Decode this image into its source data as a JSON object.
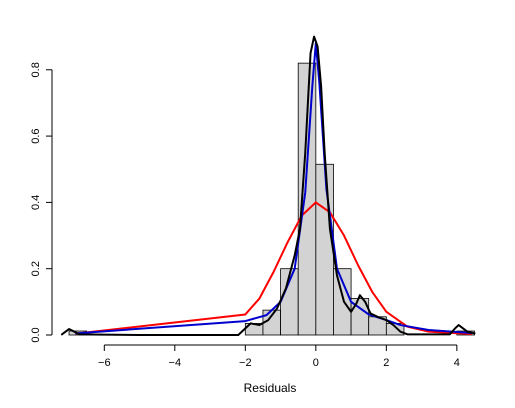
{
  "chart_data": {
    "type": "histogram",
    "title": "",
    "xlabel": "Residuals",
    "ylabel": "",
    "xlim": [
      -7.2,
      4.6
    ],
    "ylim": [
      0,
      0.92
    ],
    "x_ticks": [
      -6,
      -4,
      -2,
      0,
      2,
      4
    ],
    "y_ticks": [
      0.0,
      0.2,
      0.4,
      0.6,
      0.8
    ],
    "x_tick_labels": [
      "−6",
      "−4",
      "−2",
      "0",
      "2",
      "4"
    ],
    "y_tick_labels": [
      "0.0",
      "0.2",
      "0.4",
      "0.6",
      "0.8"
    ],
    "histogram": {
      "fill": "#d3d3d3",
      "bins": [
        {
          "x0": -7.0,
          "x1": -6.5,
          "y": 0.012
        },
        {
          "x0": -2.0,
          "x1": -1.5,
          "y": 0.035
        },
        {
          "x0": -1.5,
          "x1": -1.0,
          "y": 0.075
        },
        {
          "x0": -1.0,
          "x1": -0.5,
          "y": 0.2
        },
        {
          "x0": -0.5,
          "x1": 0.0,
          "y": 0.82
        },
        {
          "x0": 0.0,
          "x1": 0.5,
          "y": 0.515
        },
        {
          "x0": 0.5,
          "x1": 1.0,
          "y": 0.2
        },
        {
          "x0": 1.0,
          "x1": 1.5,
          "y": 0.11
        },
        {
          "x0": 1.5,
          "x1": 2.0,
          "y": 0.055
        },
        {
          "x0": 2.0,
          "x1": 2.5,
          "y": 0.035
        },
        {
          "x0": 4.0,
          "x1": 4.5,
          "y": 0.012
        }
      ]
    },
    "series": [
      {
        "color": "#ff0000",
        "points": [
          [
            -6.8,
            0.004
          ],
          [
            -2.0,
            0.062
          ],
          [
            -1.6,
            0.11
          ],
          [
            -1.2,
            0.19
          ],
          [
            -0.8,
            0.28
          ],
          [
            -0.4,
            0.36
          ],
          [
            0.0,
            0.4
          ],
          [
            0.4,
            0.37
          ],
          [
            0.8,
            0.3
          ],
          [
            1.2,
            0.21
          ],
          [
            1.6,
            0.13
          ],
          [
            2.0,
            0.07
          ],
          [
            2.6,
            0.025
          ],
          [
            3.2,
            0.01
          ],
          [
            4.4,
            0.003
          ]
        ]
      },
      {
        "color": "#0000cd",
        "points": [
          [
            -6.8,
            0.005
          ],
          [
            -2.0,
            0.042
          ],
          [
            -1.4,
            0.06
          ],
          [
            -1.0,
            0.1
          ],
          [
            -0.6,
            0.2
          ],
          [
            -0.3,
            0.43
          ],
          [
            -0.1,
            0.75
          ],
          [
            0.0,
            0.88
          ],
          [
            0.1,
            0.76
          ],
          [
            0.3,
            0.44
          ],
          [
            0.6,
            0.2
          ],
          [
            1.0,
            0.1
          ],
          [
            1.5,
            0.062
          ],
          [
            2.0,
            0.045
          ],
          [
            2.4,
            0.03
          ],
          [
            3.2,
            0.015
          ],
          [
            4.4,
            0.006
          ]
        ]
      },
      {
        "color": "#000000",
        "points": [
          [
            -7.2,
            0.002
          ],
          [
            -7.1,
            0.01
          ],
          [
            -7.0,
            0.018
          ],
          [
            -6.85,
            0.01
          ],
          [
            -6.7,
            0.002
          ],
          [
            -5.0,
            0.0
          ],
          [
            -2.2,
            0.0
          ],
          [
            -2.0,
            0.02
          ],
          [
            -1.85,
            0.035
          ],
          [
            -1.6,
            0.03
          ],
          [
            -1.35,
            0.045
          ],
          [
            -1.1,
            0.08
          ],
          [
            -0.85,
            0.14
          ],
          [
            -0.6,
            0.24
          ],
          [
            -0.45,
            0.32
          ],
          [
            -0.3,
            0.55
          ],
          [
            -0.15,
            0.85
          ],
          [
            -0.05,
            0.9
          ],
          [
            0.05,
            0.87
          ],
          [
            0.15,
            0.75
          ],
          [
            0.25,
            0.55
          ],
          [
            0.4,
            0.32
          ],
          [
            0.6,
            0.18
          ],
          [
            0.8,
            0.1
          ],
          [
            1.0,
            0.07
          ],
          [
            1.15,
            0.095
          ],
          [
            1.25,
            0.12
          ],
          [
            1.4,
            0.1
          ],
          [
            1.55,
            0.065
          ],
          [
            1.75,
            0.055
          ],
          [
            2.0,
            0.045
          ],
          [
            2.2,
            0.03
          ],
          [
            2.4,
            0.01
          ],
          [
            2.6,
            0.002
          ],
          [
            3.8,
            0.002
          ],
          [
            3.95,
            0.02
          ],
          [
            4.05,
            0.03
          ],
          [
            4.15,
            0.022
          ],
          [
            4.3,
            0.01
          ],
          [
            4.5,
            0.005
          ]
        ]
      }
    ]
  }
}
